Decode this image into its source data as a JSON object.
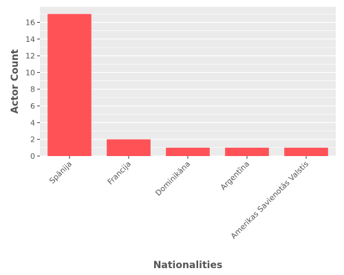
{
  "chart_data": {
    "type": "bar",
    "categories": [
      "Spānija",
      "Francija",
      "Dominikāna",
      "Argentīna",
      "Amerikas Savienotās Valstis"
    ],
    "values": [
      17,
      2,
      1,
      1,
      1
    ],
    "xlabel": "Nationalities",
    "ylabel": "Actor Count",
    "ylim": [
      0,
      17.85
    ],
    "yticks": [
      0,
      2,
      4,
      6,
      8,
      10,
      12,
      14,
      16
    ],
    "grid": true,
    "colors": {
      "bar": "#FF5257",
      "panel": "#EBEBEB",
      "grid": "#FFFFFF",
      "text": "#555555"
    }
  }
}
